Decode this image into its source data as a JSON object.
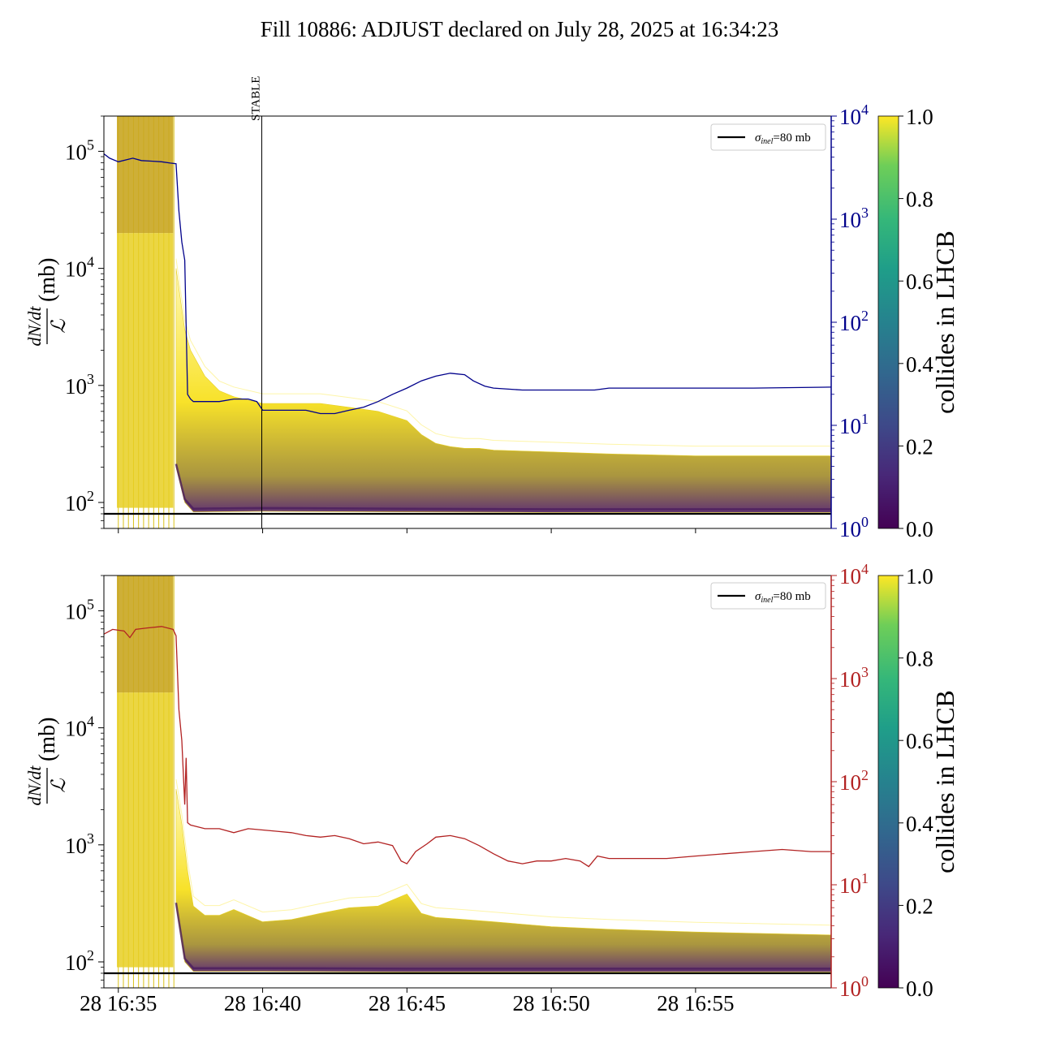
{
  "title": "Fill 10886: ADJUST declared on July 28, 2025 at 16:34:23",
  "colors": {
    "top_right_axis": "#00008b",
    "bottom_right_axis": "#b22222",
    "reference_line": "#000000",
    "band_high": "#fde725",
    "band_mid": "#8a6d1f",
    "band_low": "#440154"
  },
  "colorbar": {
    "label": "collides in LHCB",
    "ticks": [
      "0.0",
      "0.2",
      "0.4",
      "0.6",
      "0.8",
      "1.0"
    ],
    "colormap": "viridis"
  },
  "chart_data": [
    {
      "name": "top",
      "type": "line",
      "ylabel_numerator": "dN/dt",
      "ylabel_denominator": "ℒ",
      "ylabel_unit": "(mb)",
      "y_scale": "log",
      "ylim": [
        60,
        200000
      ],
      "y_ticks": [
        {
          "value": 100,
          "label": "10",
          "exp": "2"
        },
        {
          "value": 1000,
          "label": "10",
          "exp": "3"
        },
        {
          "value": 10000,
          "label": "10",
          "exp": "4"
        },
        {
          "value": 100000,
          "label": "10",
          "exp": "5"
        }
      ],
      "right_axis": {
        "scale": "log",
        "lim": [
          1,
          10000
        ],
        "color": "#00008b",
        "ticks": [
          {
            "value": 1,
            "label": "10",
            "exp": "0"
          },
          {
            "value": 10,
            "label": "10",
            "exp": "1"
          },
          {
            "value": 100,
            "label": "10",
            "exp": "2"
          },
          {
            "value": 1000,
            "label": "10",
            "exp": "3"
          },
          {
            "value": 10000,
            "label": "10",
            "exp": "4"
          }
        ]
      },
      "xlim_minutes": [
        34.5,
        59.7
      ],
      "x_ticks": [
        35,
        40,
        45,
        50,
        55
      ],
      "x_tick_labels": [
        "",
        "",
        "",
        "",
        ""
      ],
      "marker": {
        "label": "STABLE",
        "x_minute": 39.97
      },
      "legend": {
        "label": "σ_inel=80 mb",
        "sigma": "σ",
        "sub": "inel",
        "text": "=80 mb",
        "position": "top-right"
      },
      "reference_y": 80,
      "right_series": {
        "color": "#00008b",
        "points": [
          [
            34.5,
            4300
          ],
          [
            34.7,
            3900
          ],
          [
            35.0,
            3600
          ],
          [
            35.5,
            3900
          ],
          [
            35.8,
            3700
          ],
          [
            36.2,
            3650
          ],
          [
            36.5,
            3600
          ],
          [
            36.8,
            3500
          ],
          [
            37.0,
            3450
          ],
          [
            37.1,
            1200
          ],
          [
            37.2,
            600
          ],
          [
            37.3,
            400
          ],
          [
            37.4,
            20
          ],
          [
            37.5,
            18
          ],
          [
            37.6,
            17
          ],
          [
            38.0,
            17
          ],
          [
            38.5,
            17
          ],
          [
            39.0,
            18
          ],
          [
            39.5,
            18
          ],
          [
            39.8,
            17
          ],
          [
            40.0,
            14
          ],
          [
            40.5,
            14
          ],
          [
            41.0,
            14
          ],
          [
            41.5,
            14
          ],
          [
            42.0,
            13
          ],
          [
            42.5,
            13
          ],
          [
            43.0,
            14
          ],
          [
            43.5,
            15
          ],
          [
            44.0,
            17
          ],
          [
            44.5,
            20
          ],
          [
            45.0,
            23
          ],
          [
            45.5,
            27
          ],
          [
            46.0,
            30
          ],
          [
            46.5,
            32
          ],
          [
            47.0,
            31
          ],
          [
            47.3,
            27
          ],
          [
            47.7,
            24
          ],
          [
            48.0,
            23
          ],
          [
            49.0,
            22
          ],
          [
            50.0,
            22
          ],
          [
            51.5,
            22
          ],
          [
            52.0,
            23
          ],
          [
            53.0,
            23
          ],
          [
            55.0,
            23
          ],
          [
            57.0,
            23
          ],
          [
            59.7,
            23.5
          ]
        ]
      },
      "band_outline": {
        "upper": [
          [
            37.0,
            10000
          ],
          [
            37.3,
            3000
          ],
          [
            37.5,
            2000
          ],
          [
            38.0,
            1200
          ],
          [
            38.5,
            900
          ],
          [
            39.0,
            800
          ],
          [
            40.0,
            700
          ],
          [
            41.0,
            700
          ],
          [
            42.0,
            700
          ],
          [
            43.0,
            650
          ],
          [
            44.0,
            600
          ],
          [
            45.0,
            500
          ],
          [
            45.5,
            380
          ],
          [
            46.0,
            320
          ],
          [
            46.5,
            300
          ],
          [
            47.0,
            290
          ],
          [
            47.5,
            290
          ],
          [
            48.0,
            280
          ],
          [
            50.0,
            270
          ],
          [
            52.0,
            260
          ],
          [
            55.0,
            250
          ],
          [
            59.7,
            250
          ]
        ],
        "lower": [
          [
            37.0,
            200
          ],
          [
            37.3,
            100
          ],
          [
            37.6,
            83
          ],
          [
            40.0,
            84
          ],
          [
            45.0,
            83
          ],
          [
            50.0,
            82
          ],
          [
            59.7,
            82
          ]
        ]
      }
    },
    {
      "name": "bottom",
      "type": "line",
      "ylabel_numerator": "dN/dt",
      "ylabel_denominator": "ℒ",
      "ylabel_unit": "(mb)",
      "y_scale": "log",
      "ylim": [
        60,
        200000
      ],
      "y_ticks": [
        {
          "value": 100,
          "label": "10",
          "exp": "2"
        },
        {
          "value": 1000,
          "label": "10",
          "exp": "3"
        },
        {
          "value": 10000,
          "label": "10",
          "exp": "4"
        },
        {
          "value": 100000,
          "label": "10",
          "exp": "5"
        }
      ],
      "right_axis": {
        "scale": "log",
        "lim": [
          1,
          10000
        ],
        "color": "#b22222",
        "ticks": [
          {
            "value": 1,
            "label": "10",
            "exp": "0"
          },
          {
            "value": 10,
            "label": "10",
            "exp": "1"
          },
          {
            "value": 100,
            "label": "10",
            "exp": "2"
          },
          {
            "value": 1000,
            "label": "10",
            "exp": "3"
          },
          {
            "value": 10000,
            "label": "10",
            "exp": "4"
          }
        ]
      },
      "xlim_minutes": [
        34.5,
        59.7
      ],
      "x_ticks": [
        35,
        40,
        45,
        50,
        55
      ],
      "x_tick_labels": [
        "28 16:35",
        "28 16:40",
        "28 16:45",
        "28 16:50",
        "28 16:55"
      ],
      "legend": {
        "label": "σ_inel=80 mb",
        "sigma": "σ",
        "sub": "inel",
        "text": "=80 mb",
        "position": "top-right"
      },
      "reference_y": 80,
      "right_series": {
        "color": "#b22222",
        "points": [
          [
            34.5,
            2700
          ],
          [
            34.8,
            3000
          ],
          [
            35.2,
            2900
          ],
          [
            35.4,
            2500
          ],
          [
            35.6,
            3000
          ],
          [
            36.0,
            3100
          ],
          [
            36.5,
            3200
          ],
          [
            36.9,
            3000
          ],
          [
            37.0,
            2600
          ],
          [
            37.1,
            500
          ],
          [
            37.2,
            250
          ],
          [
            37.3,
            60
          ],
          [
            37.35,
            170
          ],
          [
            37.4,
            40
          ],
          [
            37.5,
            38
          ],
          [
            38.0,
            35
          ],
          [
            38.5,
            35
          ],
          [
            39.0,
            32
          ],
          [
            39.5,
            35
          ],
          [
            40.0,
            34
          ],
          [
            40.5,
            33
          ],
          [
            41.0,
            32
          ],
          [
            41.5,
            30
          ],
          [
            42.0,
            29
          ],
          [
            42.5,
            30
          ],
          [
            43.0,
            28
          ],
          [
            43.5,
            25
          ],
          [
            44.0,
            26
          ],
          [
            44.5,
            24
          ],
          [
            44.8,
            17
          ],
          [
            45.0,
            16
          ],
          [
            45.3,
            21
          ],
          [
            45.7,
            25
          ],
          [
            46.0,
            29
          ],
          [
            46.5,
            30
          ],
          [
            47.0,
            28
          ],
          [
            47.5,
            24
          ],
          [
            48.0,
            20
          ],
          [
            48.5,
            17
          ],
          [
            49.0,
            16
          ],
          [
            49.5,
            17
          ],
          [
            50.0,
            17
          ],
          [
            50.5,
            18
          ],
          [
            51.0,
            17
          ],
          [
            51.3,
            15
          ],
          [
            51.6,
            19
          ],
          [
            52.0,
            18
          ],
          [
            53.0,
            18
          ],
          [
            54.0,
            18
          ],
          [
            55.0,
            19
          ],
          [
            56.0,
            20
          ],
          [
            57.0,
            21
          ],
          [
            58.0,
            22
          ],
          [
            59.0,
            21
          ],
          [
            59.7,
            21
          ]
        ]
      },
      "band_outline": {
        "upper": [
          [
            37.0,
            3000
          ],
          [
            37.2,
            1500
          ],
          [
            37.4,
            600
          ],
          [
            37.6,
            300
          ],
          [
            38.0,
            250
          ],
          [
            38.5,
            250
          ],
          [
            39.0,
            280
          ],
          [
            40.0,
            220
          ],
          [
            41.0,
            230
          ],
          [
            42.0,
            260
          ],
          [
            43.0,
            290
          ],
          [
            44.0,
            300
          ],
          [
            45.0,
            380
          ],
          [
            45.5,
            260
          ],
          [
            46.0,
            240
          ],
          [
            47.0,
            230
          ],
          [
            48.0,
            220
          ],
          [
            50.0,
            200
          ],
          [
            52.0,
            190
          ],
          [
            55.0,
            180
          ],
          [
            59.7,
            170
          ]
        ],
        "lower": [
          [
            37.0,
            300
          ],
          [
            37.3,
            100
          ],
          [
            37.6,
            83
          ],
          [
            40.0,
            83
          ],
          [
            45.0,
            82
          ],
          [
            50.0,
            82
          ],
          [
            59.7,
            82
          ]
        ]
      }
    }
  ]
}
